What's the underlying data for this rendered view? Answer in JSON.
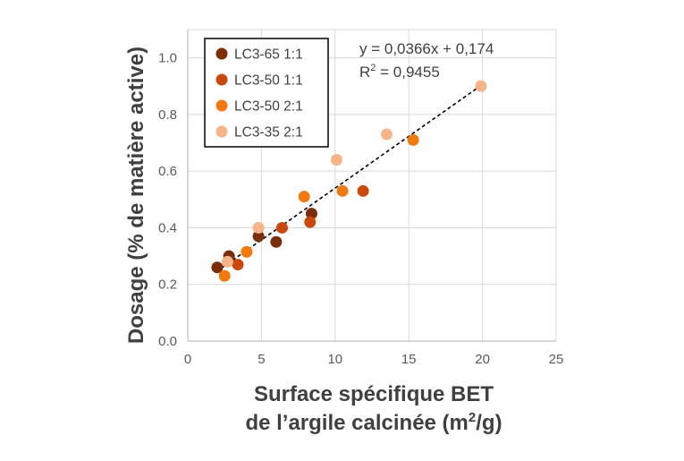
{
  "chart_data": {
    "type": "scatter",
    "xlabel_line1": "Surface spécifique BET",
    "xlabel_line2_base": "de l’argile calcinée (m",
    "xlabel_line2_sup": "2",
    "xlabel_line2_end": "/g)",
    "ylabel": "Dosage (% de matière active)",
    "xlim": [
      0,
      25
    ],
    "ylim": [
      0,
      1.1
    ],
    "x_ticks": [
      0,
      5,
      10,
      15,
      20,
      25
    ],
    "x_tick_labels": [
      "0",
      "5",
      "10",
      "15",
      "20",
      "25"
    ],
    "y_ticks": [
      0,
      0.2,
      0.4,
      0.6,
      0.8,
      1.0
    ],
    "y_tick_labels": [
      "0.0",
      "0.2",
      "0.4",
      "0.6",
      "0.8",
      "1.0"
    ],
    "grid": true,
    "legend_position": "top-left",
    "series": [
      {
        "name": "LC3-65 1:1",
        "color": "#7B2E0A",
        "points": [
          [
            2.0,
            0.26
          ],
          [
            2.8,
            0.3
          ],
          [
            4.8,
            0.37
          ],
          [
            6.0,
            0.35
          ],
          [
            8.4,
            0.45
          ]
        ]
      },
      {
        "name": "LC3-50 1:1",
        "color": "#C9480E",
        "points": [
          [
            3.4,
            0.27
          ],
          [
            6.4,
            0.4
          ],
          [
            8.3,
            0.42
          ],
          [
            11.9,
            0.53
          ]
        ]
      },
      {
        "name": "LC3-50 2:1",
        "color": "#F07A10",
        "points": [
          [
            2.5,
            0.23
          ],
          [
            4.0,
            0.315
          ],
          [
            7.9,
            0.51
          ],
          [
            10.5,
            0.53
          ],
          [
            15.3,
            0.71
          ]
        ]
      },
      {
        "name": "LC3-35 2:1",
        "color": "#F6B488",
        "points": [
          [
            2.7,
            0.28
          ],
          [
            4.8,
            0.4
          ],
          [
            10.1,
            0.64
          ],
          [
            13.5,
            0.73
          ],
          [
            19.9,
            0.9
          ]
        ]
      }
    ],
    "trendline": {
      "slope": 0.0366,
      "intercept": 0.174,
      "x_range": [
        2.0,
        19.9
      ],
      "equation": "y = 0,0366x + 0,174",
      "r2_prefix": "R",
      "r2_sup": "2",
      "r2_value": " = 0,9455"
    }
  }
}
